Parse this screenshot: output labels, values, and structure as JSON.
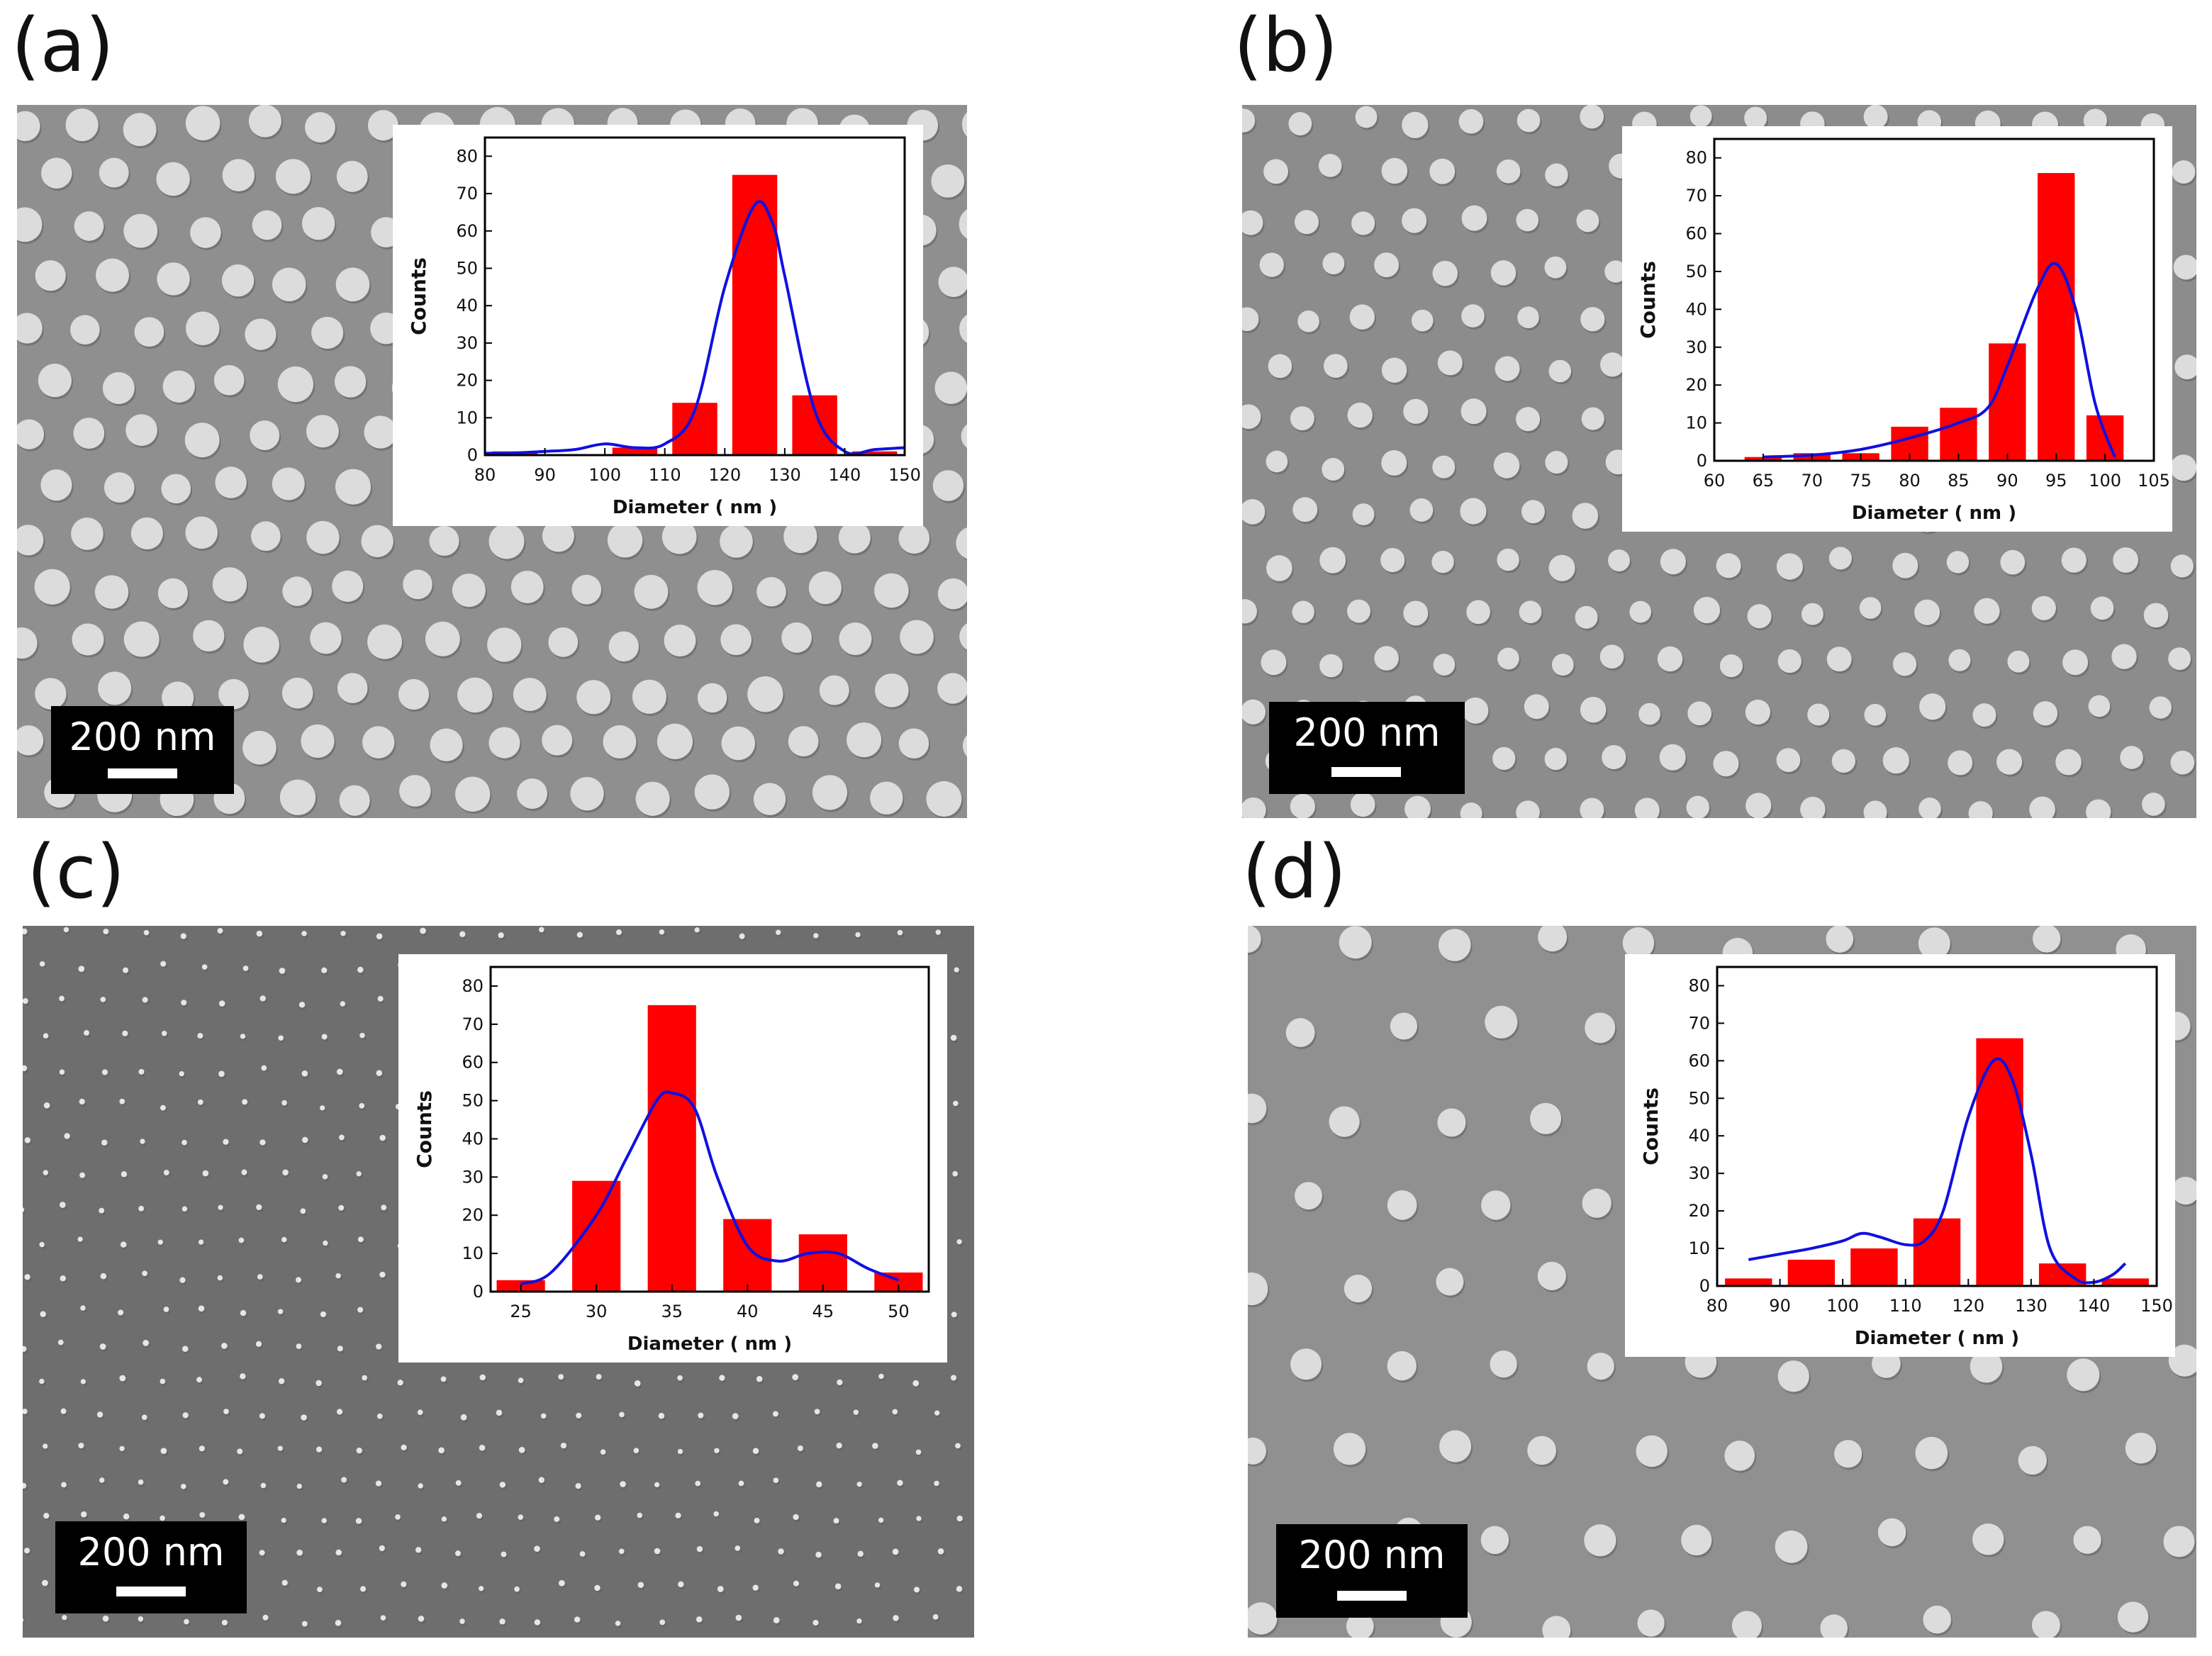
{
  "panels": [
    {
      "label": "(a)",
      "scalebar": "200 nm",
      "chart": {
        "type": "bar",
        "xlabel": "Diameter ( nm )",
        "ylabel": "Counts",
        "xlim": [
          80,
          150
        ],
        "ylim": [
          0,
          85
        ],
        "xticks": [
          80,
          90,
          100,
          110,
          120,
          130,
          140,
          150
        ],
        "yticks": [
          0,
          10,
          20,
          30,
          40,
          50,
          60,
          70,
          80
        ],
        "bar_width": 7.5,
        "bars": [
          {
            "x": 85,
            "value": 1
          },
          {
            "x": 105,
            "value": 2
          },
          {
            "x": 115,
            "value": 14
          },
          {
            "x": 125,
            "value": 75
          },
          {
            "x": 135,
            "value": 16
          },
          {
            "x": 145,
            "value": 1
          }
        ],
        "fit_curve": [
          [
            80,
            0.5
          ],
          [
            85,
            0.6
          ],
          [
            90,
            1
          ],
          [
            95,
            1.5
          ],
          [
            100,
            3
          ],
          [
            105,
            2
          ],
          [
            110,
            3
          ],
          [
            115,
            12
          ],
          [
            120,
            45
          ],
          [
            125,
            67
          ],
          [
            128,
            62
          ],
          [
            130,
            48
          ],
          [
            135,
            12
          ],
          [
            140,
            1
          ],
          [
            145,
            1.5
          ],
          [
            150,
            2
          ]
        ]
      }
    },
    {
      "label": "(b)",
      "scalebar": "200 nm",
      "chart": {
        "type": "bar",
        "xlabel": "Diameter ( nm )",
        "ylabel": "Counts",
        "xlim": [
          60,
          105
        ],
        "ylim": [
          0,
          85
        ],
        "xticks": [
          60,
          65,
          70,
          75,
          80,
          85,
          90,
          95,
          100,
          105
        ],
        "yticks": [
          0,
          10,
          20,
          30,
          40,
          50,
          60,
          70,
          80
        ],
        "bar_width": 3.8,
        "bars": [
          {
            "x": 65,
            "value": 1
          },
          {
            "x": 70,
            "value": 2
          },
          {
            "x": 75,
            "value": 2
          },
          {
            "x": 80,
            "value": 9
          },
          {
            "x": 85,
            "value": 14
          },
          {
            "x": 90,
            "value": 31
          },
          {
            "x": 95,
            "value": 76
          },
          {
            "x": 100,
            "value": 12
          }
        ],
        "fit_curve": [
          [
            65,
            1
          ],
          [
            70,
            1.5
          ],
          [
            75,
            3
          ],
          [
            80,
            6
          ],
          [
            85,
            10
          ],
          [
            88,
            14
          ],
          [
            90,
            25
          ],
          [
            93,
            45
          ],
          [
            95,
            52
          ],
          [
            97,
            40
          ],
          [
            99,
            15
          ],
          [
            101,
            1
          ]
        ]
      }
    },
    {
      "label": "(c)",
      "scalebar": "200 nm",
      "chart": {
        "type": "bar",
        "xlabel": "Diameter ( nm )",
        "ylabel": "Counts",
        "xlim": [
          23,
          52
        ],
        "ylim": [
          0,
          85
        ],
        "xticks": [
          25,
          30,
          35,
          40,
          45,
          50
        ],
        "yticks": [
          0,
          10,
          20,
          30,
          40,
          50,
          60,
          70,
          80
        ],
        "bar_width": 3.2,
        "bars": [
          {
            "x": 25,
            "value": 3
          },
          {
            "x": 30,
            "value": 29
          },
          {
            "x": 35,
            "value": 75
          },
          {
            "x": 40,
            "value": 19
          },
          {
            "x": 45,
            "value": 15
          },
          {
            "x": 50,
            "value": 5
          }
        ],
        "fit_curve": [
          [
            25,
            2
          ],
          [
            27,
            5
          ],
          [
            30,
            20
          ],
          [
            32,
            35
          ],
          [
            34,
            50
          ],
          [
            35,
            52
          ],
          [
            36.5,
            48
          ],
          [
            38,
            30
          ],
          [
            40,
            12
          ],
          [
            42,
            8
          ],
          [
            44,
            10
          ],
          [
            46,
            10
          ],
          [
            48,
            6
          ],
          [
            50,
            3
          ]
        ]
      }
    },
    {
      "label": "(d)",
      "scalebar": "200 nm",
      "chart": {
        "type": "bar",
        "xlabel": "Diameter ( nm )",
        "ylabel": "Counts",
        "xlim": [
          80,
          150
        ],
        "ylim": [
          0,
          85
        ],
        "xticks": [
          80,
          90,
          100,
          110,
          120,
          130,
          140,
          150
        ],
        "yticks": [
          0,
          10,
          20,
          30,
          40,
          50,
          60,
          70,
          80
        ],
        "bar_width": 7.5,
        "bars": [
          {
            "x": 85,
            "value": 2
          },
          {
            "x": 95,
            "value": 7
          },
          {
            "x": 105,
            "value": 10
          },
          {
            "x": 115,
            "value": 18
          },
          {
            "x": 125,
            "value": 66
          },
          {
            "x": 135,
            "value": 6
          },
          {
            "x": 145,
            "value": 2
          }
        ],
        "fit_curve": [
          [
            85,
            7
          ],
          [
            90,
            8.5
          ],
          [
            95,
            10
          ],
          [
            100,
            12
          ],
          [
            103,
            14
          ],
          [
            106,
            13
          ],
          [
            110,
            11
          ],
          [
            113,
            12
          ],
          [
            116,
            20
          ],
          [
            120,
            45
          ],
          [
            124,
            60
          ],
          [
            127,
            55
          ],
          [
            130,
            35
          ],
          [
            133,
            10
          ],
          [
            137,
            2
          ],
          [
            140,
            1
          ],
          [
            143,
            3
          ],
          [
            145,
            6
          ]
        ]
      }
    }
  ],
  "colors": {
    "bar": "#ff0000",
    "curve": "#1010e0",
    "axis": "#000000",
    "sem_bg_a": "#8f8f8f",
    "sem_bg_b": "#8c8c8c",
    "sem_bg_c": "#6e6e6e",
    "sem_bg_d": "#909090",
    "particle": "#dcdcdc"
  }
}
